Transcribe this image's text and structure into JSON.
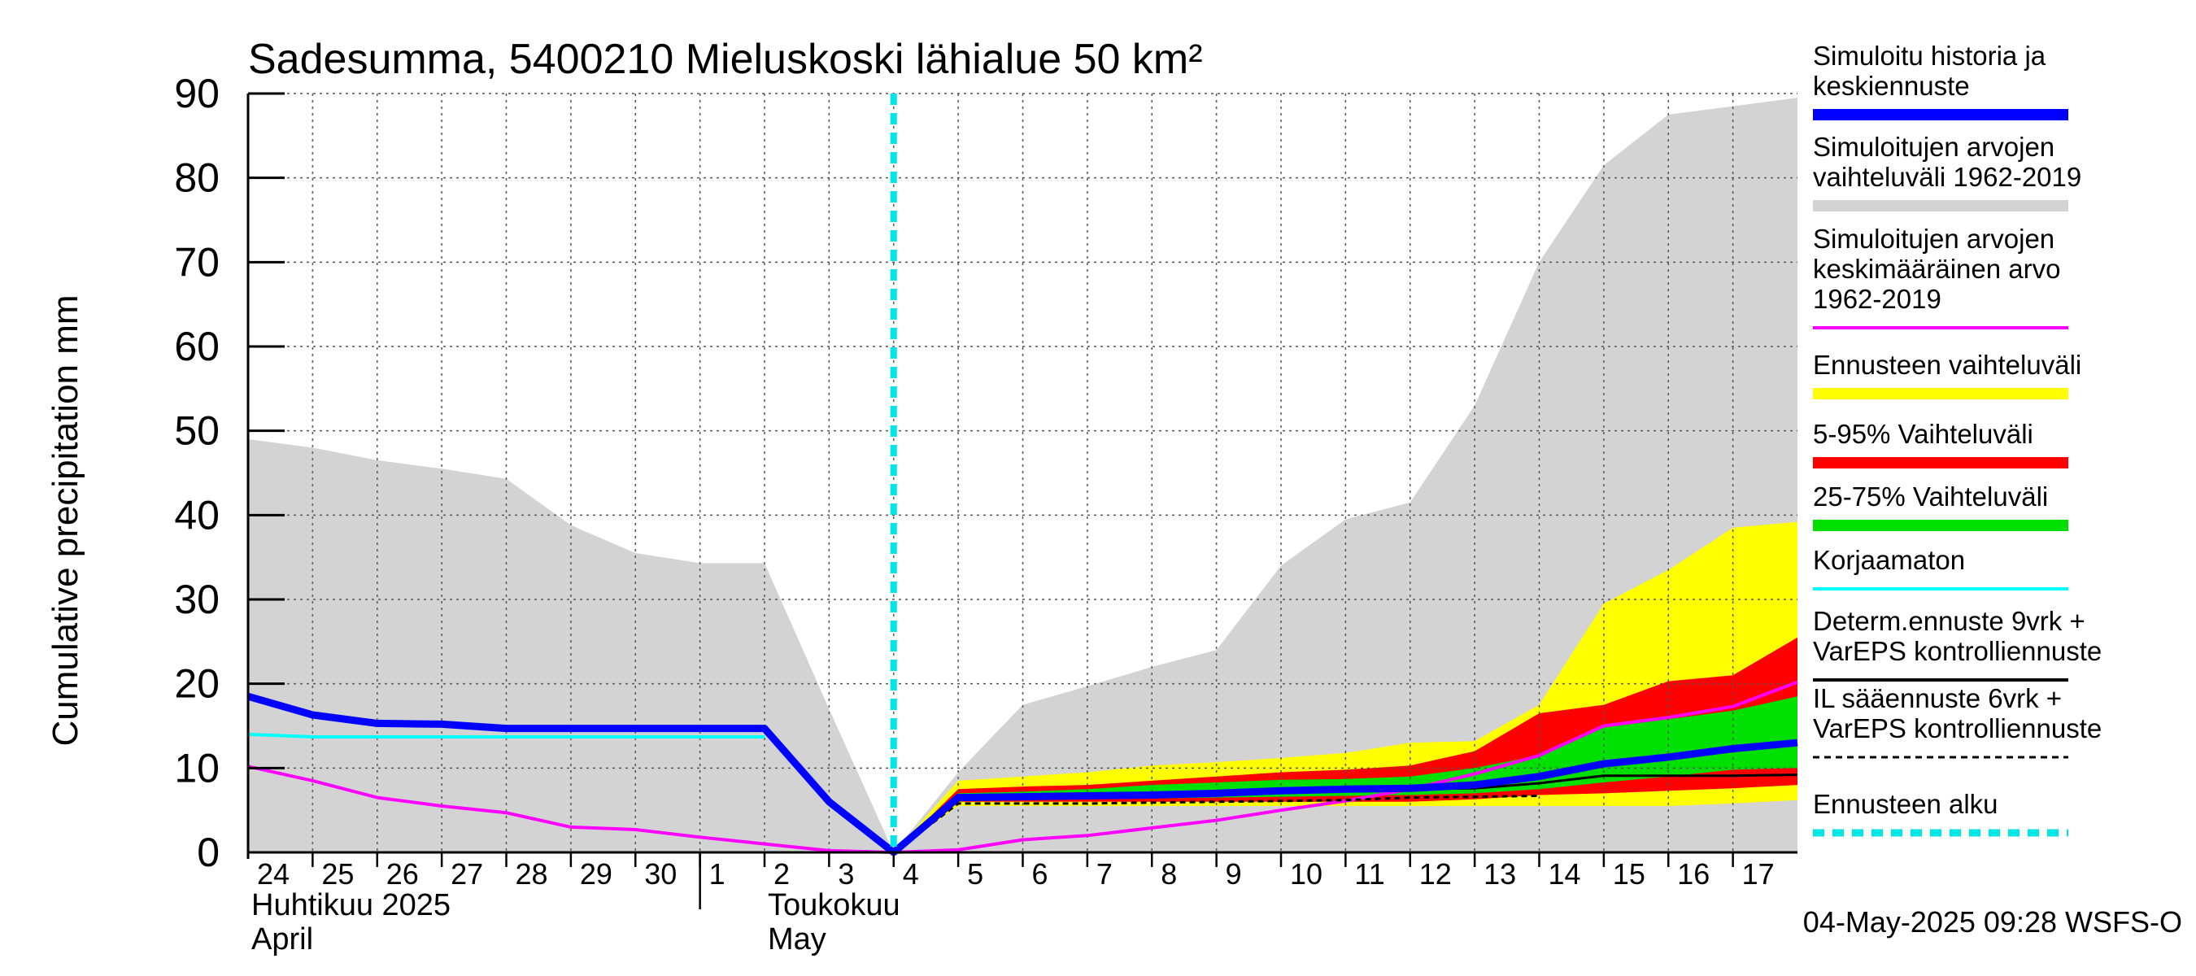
{
  "chart_data": {
    "type": "area",
    "title": "Sadesumma, 5400210 Mieluskoski lähialue 50 km²",
    "ylabel": "Cumulative precipitation   mm",
    "ylim": [
      0,
      90
    ],
    "yticks": [
      0,
      10,
      20,
      30,
      40,
      50,
      60,
      70,
      80,
      90
    ],
    "x_start_day": 24,
    "x_end": 24.0,
    "forecast_start": 10.0,
    "tick_labels": [
      "24",
      "25",
      "26",
      "27",
      "28",
      "29",
      "30",
      "1",
      "2",
      "3",
      "4",
      "5",
      "6",
      "7",
      "8",
      "9",
      "10",
      "11",
      "12",
      "13",
      "14",
      "15",
      "16",
      "17"
    ],
    "month_labels": [
      {
        "line1": "Huhtikuu  2025",
        "line2": "April",
        "at": 0.0
      },
      {
        "line1": "Toukokuu",
        "line2": "May",
        "at": 8.0
      }
    ],
    "month_divider_at": 7.0,
    "grid": true,
    "footer": "04-May-2025 09:28 WSFS-O",
    "series": [
      {
        "name": "grey_upper",
        "x": [
          0,
          1,
          2,
          3,
          4,
          5,
          6,
          7,
          8,
          9,
          10,
          11,
          12,
          13,
          14,
          15,
          16,
          17,
          18,
          19,
          20,
          21,
          22,
          23,
          24
        ],
        "values": [
          49,
          48,
          46.5,
          45.5,
          44.3,
          38.8,
          35.5,
          34.3,
          34.3,
          17,
          0,
          9.5,
          17.5,
          19.7,
          22,
          24,
          34,
          39.5,
          41.5,
          53,
          70,
          81.5,
          87.5,
          88.5,
          89.5
        ]
      },
      {
        "name": "grey_lower",
        "x": [
          0,
          1,
          2,
          3,
          4,
          5,
          6,
          7,
          8,
          9,
          10,
          11,
          12,
          13,
          14,
          15,
          16,
          17,
          18,
          19,
          20,
          21,
          22,
          23,
          24
        ],
        "values": [
          0,
          0,
          0,
          0,
          0,
          0,
          0,
          0,
          0,
          0,
          0,
          0,
          0,
          0,
          0,
          0,
          0,
          0,
          0,
          0,
          0,
          0,
          0,
          0,
          0
        ]
      },
      {
        "name": "yellow_upper",
        "x": [
          10,
          11,
          12,
          13,
          14,
          15,
          16,
          17,
          18,
          19,
          20,
          21,
          22,
          23,
          24
        ],
        "values": [
          0,
          8.5,
          9,
          9.5,
          10.3,
          10.7,
          11.2,
          11.8,
          13,
          13.2,
          17.5,
          29.5,
          33.5,
          38.5,
          39.2
        ]
      },
      {
        "name": "yellow_lower",
        "x": [
          10,
          11,
          12,
          13,
          14,
          15,
          16,
          17,
          18,
          19,
          20,
          21,
          22,
          23,
          24
        ],
        "values": [
          0,
          5.5,
          5.5,
          5.5,
          5.5,
          5.5,
          5.5,
          5.5,
          5.5,
          5.5,
          5.5,
          5.5,
          5.5,
          5.8,
          6.2
        ]
      },
      {
        "name": "red_upper",
        "x": [
          10,
          11,
          12,
          13,
          14,
          15,
          16,
          17,
          18,
          19,
          20,
          21,
          22,
          23,
          24
        ],
        "values": [
          0,
          7.5,
          7.8,
          8,
          8.5,
          9,
          9.5,
          9.8,
          10.3,
          12,
          16.5,
          17.5,
          20.3,
          21,
          25.5
        ]
      },
      {
        "name": "red_lower",
        "x": [
          10,
          11,
          12,
          13,
          14,
          15,
          16,
          17,
          18,
          19,
          20,
          21,
          22,
          23,
          24
        ],
        "values": [
          0,
          6,
          6,
          6,
          6,
          6,
          6,
          6,
          6,
          6.3,
          6.8,
          7,
          7.3,
          7.6,
          8
        ]
      },
      {
        "name": "green_upper",
        "x": [
          10,
          11,
          12,
          13,
          14,
          15,
          16,
          17,
          18,
          19,
          20,
          21,
          22,
          23,
          24
        ],
        "values": [
          0,
          7,
          7.2,
          7.5,
          8,
          8.3,
          8.6,
          8.7,
          9,
          10,
          11.5,
          14.8,
          15.8,
          16.8,
          18.5
        ]
      },
      {
        "name": "green_lower",
        "x": [
          10,
          11,
          12,
          13,
          14,
          15,
          16,
          17,
          18,
          19,
          20,
          21,
          22,
          23,
          24
        ],
        "values": [
          0,
          6.3,
          6.3,
          6.3,
          6.4,
          6.5,
          6.6,
          6.7,
          6.8,
          7,
          7.5,
          8.3,
          9,
          9.8,
          10
        ]
      },
      {
        "name": "Simuloitujen arvojen keskimääräinen arvo",
        "x": [
          0,
          1,
          2,
          3,
          4,
          5,
          6,
          7,
          8,
          9,
          10,
          11,
          12,
          13,
          14,
          15,
          16,
          17,
          18,
          19,
          20,
          21,
          22,
          23,
          24
        ],
        "values": [
          10.2,
          8.5,
          6.5,
          5.5,
          4.7,
          3,
          2.7,
          1.8,
          1,
          0.2,
          0,
          0.3,
          1.5,
          2,
          2.9,
          3.8,
          5,
          6.1,
          7.5,
          9.3,
          11.5,
          15,
          16,
          17.3,
          20.2
        ]
      },
      {
        "name": "Korjaamaton",
        "x": [
          0,
          1,
          2,
          3,
          4,
          5,
          6,
          7,
          8
        ],
        "values": [
          14,
          13.7,
          13.7,
          13.7,
          13.7,
          13.7,
          13.7,
          13.7,
          13.7
        ]
      },
      {
        "name": "Determ.ennuste 9vrk + VarEPS kontrolliennuste",
        "x": [
          10,
          11,
          12,
          13,
          14,
          15,
          16,
          17,
          18,
          19,
          20,
          21,
          22,
          23,
          24
        ],
        "values": [
          0,
          6.5,
          6.5,
          6.6,
          6.7,
          6.9,
          7.2,
          7.4,
          7.5,
          7.6,
          8.2,
          9.1,
          9.1,
          9.1,
          9.2
        ]
      },
      {
        "name": "IL sääennuste 6vrk + VarEPS kontrolliennuste",
        "x": [
          10,
          11,
          12,
          13,
          14,
          15,
          16,
          17,
          18,
          19,
          20
        ],
        "values": [
          0,
          5.8,
          5.8,
          5.8,
          5.9,
          6,
          6.1,
          6.2,
          6.5,
          6.6,
          6.7
        ]
      },
      {
        "name": "Simuloitu historia ja keskiennuste",
        "x": [
          0,
          1,
          2,
          3,
          4,
          5,
          6,
          7,
          8,
          9,
          10,
          11,
          12,
          13,
          14,
          15,
          16,
          17,
          18,
          19,
          20,
          21,
          22,
          23,
          24
        ],
        "values": [
          18.5,
          16.3,
          15.3,
          15.2,
          14.7,
          14.7,
          14.7,
          14.7,
          14.7,
          6,
          0,
          6.5,
          6.6,
          6.7,
          6.8,
          7,
          7.3,
          7.5,
          7.6,
          8,
          9,
          10.5,
          11.3,
          12.3,
          13
        ]
      }
    ],
    "legend": [
      {
        "label": "Simuloitu historia ja keskiennuste",
        "color": "#0000ff",
        "style": "thick"
      },
      {
        "label": "Simuloitujen arvojen vaihteluväli 1962-2019",
        "color": "#d3d3d3",
        "style": "thick"
      },
      {
        "label": "Simuloitujen arvojen keskimääräinen arvo 1962-2019",
        "color": "#ff00ff",
        "style": "thin"
      },
      {
        "label": "Ennusteen vaihteluväli",
        "color": "#ffff00",
        "style": "thick"
      },
      {
        "label": "5-95% Vaihteluväli",
        "color": "#ff0000",
        "style": "thick"
      },
      {
        "label": "25-75% Vaihteluväli",
        "color": "#00e000",
        "style": "thick"
      },
      {
        "label": "Korjaamaton",
        "color": "#00ffff",
        "style": "thin"
      },
      {
        "label": "Determ.ennuste 9vrk + VarEPS kontrolliennuste",
        "color": "#000000",
        "style": "thin"
      },
      {
        "label": "IL sääennuste 6vrk + VarEPS kontrolliennuste",
        "color": "#000000",
        "style": "dashed"
      },
      {
        "label": "Ennusteen alku",
        "color": "#00e5e5",
        "style": "thickdashed"
      }
    ],
    "legend_lines": [
      [
        "Simuloitu historia ja",
        "keskiennuste"
      ],
      [
        "Simuloitujen arvojen",
        "vaihteluväli 1962-2019"
      ],
      [
        "Simuloitujen arvojen",
        "keskimääräinen arvo",
        "   1962-2019"
      ],
      [
        "Ennusteen vaihteluväli"
      ],
      [
        "5-95% Vaihteluväli"
      ],
      [
        "25-75% Vaihteluväli"
      ],
      [
        "Korjaamaton"
      ],
      [
        "Determ.ennuste 9vrk +",
        "VarEPS kontrolliennuste"
      ],
      [
        "IL sääennuste 6vrk  +",
        "  VarEPS kontrolliennuste"
      ],
      [
        "Ennusteen alku"
      ]
    ]
  }
}
